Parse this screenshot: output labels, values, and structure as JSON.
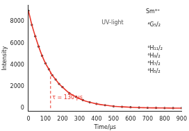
{
  "chart_data": {
    "type": "scatter",
    "x_label": "Time/μs",
    "y_label": "Intensity",
    "x": [
      0,
      20,
      40,
      60,
      80,
      100,
      120,
      140,
      160,
      180,
      200,
      240,
      280,
      320,
      360,
      400,
      450,
      500,
      550,
      600,
      650,
      700,
      750,
      800,
      850,
      900
    ],
    "series": [
      {
        "type": "scatter",
        "color": "#2b2b2b",
        "marker": "circle",
        "values": [
          9000,
          7700,
          6650,
          5700,
          4850,
          4150,
          3600,
          3050,
          2650,
          2250,
          1950,
          1400,
          1050,
          750,
          550,
          400,
          280,
          180,
          130,
          90,
          60,
          40,
          30,
          20,
          10,
          10
        ]
      },
      {
        "type": "line",
        "color": "#e8352a",
        "line_style": "solid",
        "values": [
          9000,
          7700,
          6650,
          5700,
          4850,
          4150,
          3600,
          3050,
          2650,
          2250,
          1950,
          1400,
          1050,
          750,
          550,
          400,
          280,
          180,
          130,
          90,
          60,
          40,
          30,
          20,
          10,
          10
        ]
      }
    ],
    "xlim": [
      0,
      900
    ],
    "xticks": [
      0,
      100,
      200,
      300,
      400,
      500,
      600,
      700,
      800,
      900
    ],
    "ylim": [
      -300,
      9500
    ],
    "yticks": [
      0,
      2000,
      4000,
      6000,
      8000
    ],
    "grid": false,
    "annotations": [
      {
        "text": "τ = 130 μs",
        "x": 140,
        "y": 1000,
        "color": "#e8352a",
        "line_x": 130,
        "line_y": [
          0,
          3450
        ],
        "line_style": "dashed"
      },
      {
        "text": "UV-light",
        "x": 430,
        "y": 7900,
        "color": "#555555"
      },
      {
        "text": "Sm³⁺",
        "x": 690,
        "y": 8900,
        "color": "#222222"
      },
      {
        "text": "⁴G₅/₂",
        "x": 700,
        "y": 7700,
        "color": "#222222"
      },
      {
        "text": "⁶H₁₁/₂",
        "x": 700,
        "y": 5500,
        "color": "#222222"
      },
      {
        "text": "⁶H₉/₂",
        "x": 700,
        "y": 4800,
        "color": "#222222"
      },
      {
        "text": "⁶H₇/₂",
        "x": 700,
        "y": 4100,
        "color": "#222222"
      },
      {
        "text": "⁶H₅/₂",
        "x": 700,
        "y": 3400,
        "color": "#222222"
      }
    ]
  }
}
